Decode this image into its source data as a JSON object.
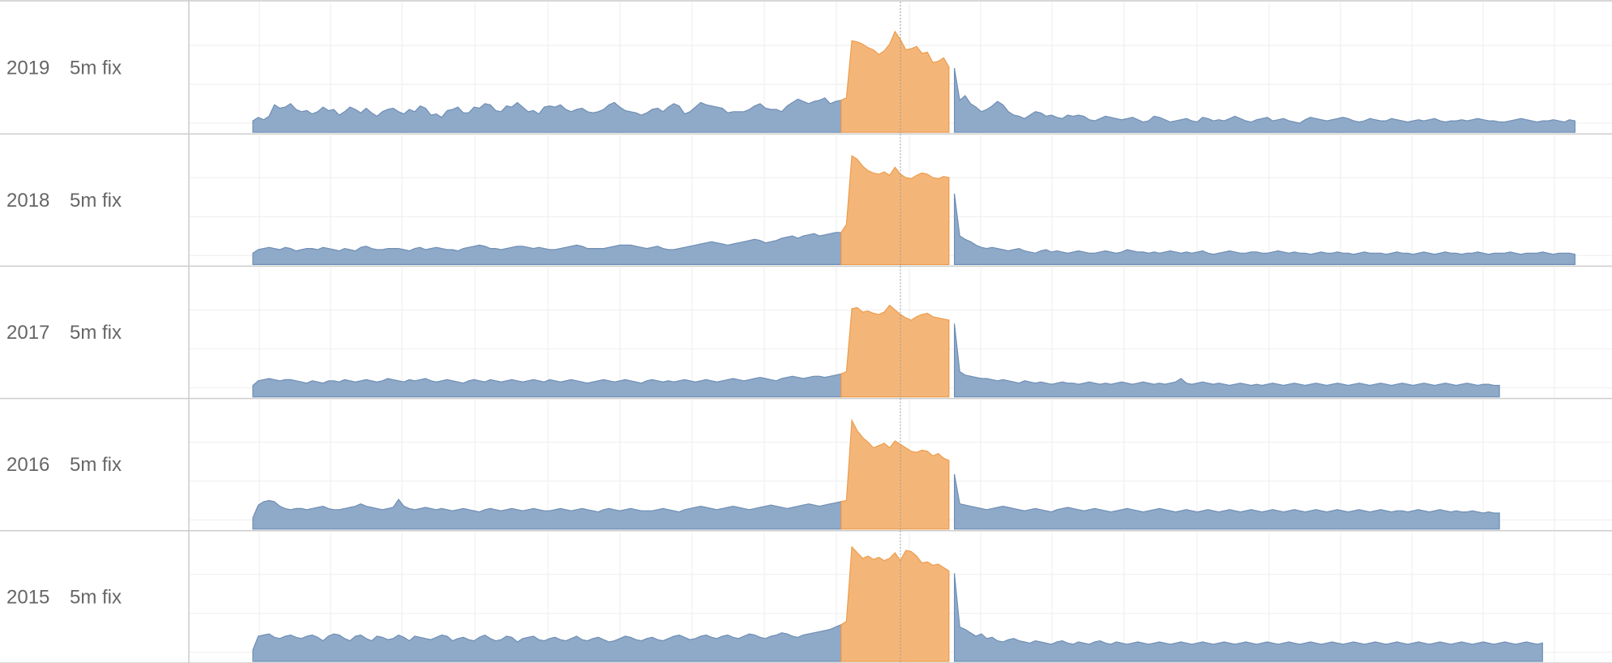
{
  "colors": {
    "base_fill": "#8fa9c8",
    "base_stroke": "#6f8fb5",
    "highlight_fill": "#f4b678",
    "highlight_stroke": "#ec9c4c",
    "grid": "#eeeeee",
    "border": "#cccccc",
    "label": "#666666",
    "reference_line": "#999999"
  },
  "chart_data": {
    "type": "area",
    "layout": "small-multiples",
    "title": "",
    "xlabel": "",
    "ylabel": "",
    "x_domain": [
      0,
      240
    ],
    "ylim": [
      0,
      100
    ],
    "grid": true,
    "highlight_range": [
      109,
      129
    ],
    "reference_x": 120,
    "rows": [
      {
        "year": "2019",
        "label": "5m fix",
        "values": [
          10,
          13,
          11,
          14,
          24,
          21,
          22,
          25,
          20,
          18,
          19,
          16,
          18,
          22,
          19,
          20,
          15,
          18,
          22,
          20,
          17,
          21,
          17,
          14,
          18,
          20,
          21,
          18,
          16,
          20,
          18,
          23,
          21,
          15,
          16,
          13,
          19,
          20,
          22,
          17,
          17,
          22,
          21,
          25,
          24,
          19,
          18,
          23,
          22,
          26,
          22,
          18,
          19,
          16,
          22,
          23,
          22,
          24,
          20,
          18,
          20,
          21,
          18,
          17,
          18,
          20,
          24,
          26,
          22,
          19,
          18,
          17,
          15,
          17,
          20,
          21,
          18,
          22,
          25,
          23,
          16,
          18,
          22,
          26,
          24,
          23,
          22,
          21,
          17,
          18,
          18,
          18,
          20,
          23,
          25,
          21,
          20,
          20,
          18,
          23,
          26,
          29,
          27,
          25,
          27,
          28,
          30,
          25,
          27,
          28,
          30,
          80,
          79,
          77,
          74,
          72,
          68,
          71,
          77,
          88,
          81,
          72,
          73,
          75,
          69,
          70,
          61,
          62,
          65,
          57,
          56,
          28,
          32,
          25,
          22,
          18,
          20,
          23,
          27,
          24,
          18,
          15,
          14,
          12,
          15,
          18,
          17,
          14,
          15,
          13,
          12,
          15,
          14,
          15,
          14,
          11,
          10,
          12,
          14,
          13,
          12,
          11,
          12,
          13,
          11,
          9,
          10,
          14,
          13,
          11,
          9,
          10,
          11,
          12,
          10,
          9,
          13,
          12,
          10,
          11,
          10,
          12,
          14,
          12,
          10,
          9,
          11,
          12,
          13,
          10,
          11,
          12,
          10,
          9,
          8,
          11,
          13,
          12,
          11,
          10,
          11,
          12,
          13,
          12,
          10,
          9,
          10,
          12,
          11,
          10,
          10,
          12,
          11,
          10,
          9,
          10,
          11,
          10,
          11,
          12,
          10,
          9,
          10,
          10,
          11,
          10,
          11,
          12,
          11,
          10,
          10,
          9,
          9,
          10,
          11,
          12,
          11,
          10,
          9,
          10,
          10,
          11,
          10,
          9,
          11,
          10
        ]
      },
      {
        "year": "2018",
        "label": "5m fix",
        "values": [
          10,
          13,
          14,
          15,
          14,
          13,
          15,
          14,
          12,
          13,
          14,
          14,
          13,
          15,
          14,
          13,
          12,
          14,
          13,
          12,
          15,
          16,
          14,
          13,
          13,
          14,
          14,
          14,
          13,
          12,
          14,
          15,
          13,
          14,
          15,
          14,
          13,
          13,
          12,
          14,
          15,
          16,
          17,
          16,
          14,
          14,
          13,
          14,
          15,
          16,
          16,
          15,
          14,
          15,
          14,
          13,
          13,
          14,
          15,
          16,
          17,
          16,
          14,
          14,
          14,
          14,
          15,
          16,
          17,
          17,
          17,
          16,
          15,
          14,
          15,
          16,
          14,
          13,
          13,
          14,
          15,
          16,
          17,
          18,
          19,
          20,
          19,
          18,
          17,
          18,
          19,
          20,
          21,
          22,
          21,
          19,
          20,
          21,
          23,
          24,
          25,
          23,
          25,
          26,
          27,
          25,
          26,
          27,
          28,
          28,
          35,
          95,
          92,
          86,
          82,
          80,
          79,
          81,
          78,
          85,
          79,
          76,
          75,
          78,
          80,
          79,
          76,
          75,
          77,
          76,
          62,
          25,
          22,
          20,
          17,
          15,
          14,
          15,
          14,
          13,
          12,
          13,
          14,
          12,
          11,
          10,
          12,
          13,
          11,
          12,
          11,
          10,
          11,
          12,
          11,
          10,
          10,
          11,
          12,
          11,
          10,
          11,
          13,
          12,
          11,
          11,
          10,
          11,
          10,
          11,
          12,
          11,
          10,
          11,
          10,
          11,
          12,
          10,
          9,
          10,
          11,
          12,
          11,
          10,
          10,
          11,
          11,
          10,
          10,
          11,
          12,
          11,
          10,
          11,
          10,
          10,
          9,
          10,
          11,
          10,
          10,
          11,
          10,
          10,
          9,
          10,
          11,
          10,
          10,
          10,
          9,
          10,
          11,
          10,
          10,
          9,
          10,
          11,
          10,
          9,
          10,
          11,
          10,
          10,
          9,
          10,
          10,
          11,
          10,
          9,
          10,
          10,
          10,
          11,
          10,
          9,
          10,
          10,
          10,
          11,
          10,
          9,
          10,
          10,
          10,
          9
        ]
      },
      {
        "year": "2017",
        "label": "5m fix",
        "values": [
          10,
          14,
          15,
          16,
          15,
          14,
          15,
          15,
          14,
          13,
          12,
          14,
          13,
          12,
          14,
          14,
          13,
          15,
          14,
          13,
          14,
          15,
          14,
          13,
          14,
          16,
          15,
          14,
          13,
          15,
          14,
          15,
          16,
          14,
          13,
          14,
          15,
          14,
          13,
          12,
          14,
          15,
          14,
          13,
          15,
          14,
          13,
          14,
          15,
          14,
          13,
          14,
          15,
          14,
          13,
          15,
          14,
          13,
          14,
          15,
          14,
          13,
          12,
          13,
          14,
          15,
          14,
          13,
          14,
          15,
          14,
          13,
          12,
          14,
          15,
          14,
          13,
          14,
          13,
          14,
          15,
          14,
          13,
          14,
          15,
          14,
          13,
          14,
          15,
          16,
          15,
          14,
          15,
          16,
          17,
          16,
          15,
          14,
          16,
          17,
          18,
          17,
          16,
          17,
          18,
          18,
          17,
          18,
          19,
          20,
          22,
          77,
          78,
          74,
          75,
          73,
          72,
          74,
          80,
          76,
          72,
          69,
          67,
          70,
          72,
          73,
          70,
          69,
          68,
          67,
          64,
          22,
          19,
          18,
          17,
          16,
          16,
          15,
          14,
          15,
          14,
          13,
          12,
          14,
          13,
          12,
          13,
          12,
          11,
          12,
          13,
          12,
          12,
          11,
          12,
          13,
          12,
          11,
          12,
          11,
          12,
          13,
          12,
          11,
          12,
          13,
          12,
          11,
          12,
          11,
          12,
          13,
          16,
          12,
          11,
          12,
          13,
          12,
          11,
          12,
          11,
          10,
          11,
          12,
          11,
          10,
          11,
          10,
          11,
          12,
          11,
          10,
          11,
          12,
          11,
          10,
          11,
          12,
          11,
          10,
          11,
          12,
          11,
          10,
          11,
          12,
          11,
          10,
          11,
          12,
          11,
          10,
          11,
          12,
          11,
          10,
          11,
          12,
          11,
          10,
          11,
          12,
          11,
          10,
          11,
          12,
          11,
          10,
          11,
          11,
          10,
          10
        ]
      },
      {
        "year": "2016",
        "label": "5m fix",
        "values": [
          10,
          21,
          24,
          25,
          24,
          20,
          18,
          17,
          18,
          18,
          17,
          18,
          19,
          20,
          18,
          17,
          17,
          18,
          19,
          20,
          22,
          20,
          19,
          18,
          17,
          18,
          19,
          26,
          20,
          18,
          17,
          18,
          19,
          18,
          17,
          18,
          17,
          16,
          17,
          18,
          17,
          16,
          15,
          17,
          18,
          17,
          16,
          17,
          18,
          17,
          16,
          17,
          18,
          17,
          16,
          16,
          17,
          18,
          17,
          16,
          17,
          18,
          17,
          16,
          15,
          17,
          18,
          17,
          16,
          17,
          18,
          17,
          16,
          16,
          16,
          17,
          18,
          17,
          16,
          15,
          17,
          18,
          19,
          20,
          19,
          18,
          17,
          18,
          19,
          20,
          19,
          18,
          17,
          18,
          19,
          20,
          21,
          20,
          19,
          18,
          19,
          20,
          21,
          22,
          21,
          20,
          21,
          22,
          23,
          24,
          25,
          95,
          86,
          80,
          76,
          71,
          73,
          75,
          71,
          77,
          74,
          71,
          68,
          67,
          69,
          68,
          64,
          66,
          62,
          60,
          48,
          22,
          21,
          20,
          19,
          18,
          17,
          18,
          19,
          20,
          19,
          18,
          17,
          16,
          17,
          18,
          17,
          16,
          15,
          17,
          18,
          19,
          18,
          17,
          16,
          17,
          18,
          17,
          16,
          15,
          16,
          17,
          18,
          17,
          16,
          15,
          16,
          17,
          18,
          17,
          16,
          15,
          16,
          17,
          16,
          15,
          16,
          17,
          16,
          15,
          16,
          17,
          16,
          15,
          16,
          17,
          16,
          15,
          16,
          17,
          16,
          15,
          16,
          17,
          16,
          15,
          16,
          17,
          16,
          15,
          16,
          17,
          16,
          15,
          16,
          17,
          16,
          15,
          16,
          17,
          16,
          15,
          16,
          16,
          15,
          16,
          17,
          16,
          15,
          16,
          17,
          16,
          15,
          16,
          15,
          15,
          16,
          15,
          14,
          15,
          14,
          14
        ]
      },
      {
        "year": "2015",
        "label": "5m fix",
        "values": [
          10,
          22,
          23,
          24,
          21,
          20,
          22,
          23,
          21,
          20,
          22,
          23,
          21,
          18,
          22,
          24,
          23,
          20,
          18,
          22,
          23,
          20,
          18,
          22,
          21,
          19,
          20,
          23,
          21,
          18,
          22,
          21,
          20,
          19,
          21,
          23,
          22,
          18,
          20,
          21,
          19,
          18,
          21,
          23,
          20,
          18,
          19,
          22,
          21,
          17,
          20,
          21,
          22,
          19,
          18,
          20,
          21,
          19,
          18,
          20,
          22,
          19,
          18,
          20,
          21,
          19,
          17,
          18,
          20,
          22,
          21,
          19,
          18,
          20,
          21,
          19,
          18,
          20,
          22,
          23,
          21,
          19,
          20,
          22,
          23,
          21,
          20,
          22,
          23,
          21,
          20,
          22,
          24,
          23,
          21,
          20,
          22,
          23,
          25,
          24,
          22,
          21,
          23,
          24,
          25,
          26,
          27,
          28,
          30,
          32,
          35,
          100,
          95,
          90,
          92,
          89,
          91,
          88,
          90,
          95,
          88,
          97,
          96,
          92,
          86,
          87,
          84,
          85,
          82,
          79,
          77,
          30,
          28,
          25,
          22,
          24,
          20,
          21,
          18,
          17,
          19,
          20,
          18,
          17,
          16,
          18,
          17,
          16,
          15,
          17,
          18,
          16,
          15,
          17,
          16,
          15,
          17,
          18,
          16,
          15,
          17,
          16,
          15,
          16,
          17,
          16,
          15,
          16,
          17,
          16,
          15,
          16,
          17,
          16,
          15,
          16,
          17,
          16,
          15,
          16,
          17,
          16,
          15,
          16,
          17,
          16,
          15,
          16,
          17,
          16,
          15,
          16,
          17,
          16,
          15,
          16,
          17,
          16,
          15,
          16,
          17,
          16,
          15,
          16,
          17,
          16,
          15,
          16,
          17,
          16,
          15,
          16,
          17,
          16,
          15,
          16,
          17,
          16,
          15,
          16,
          17,
          16,
          15,
          16,
          17,
          16,
          15,
          16,
          17,
          16,
          15,
          16,
          17,
          16,
          15,
          16,
          17,
          16,
          15,
          16
        ]
      }
    ]
  }
}
